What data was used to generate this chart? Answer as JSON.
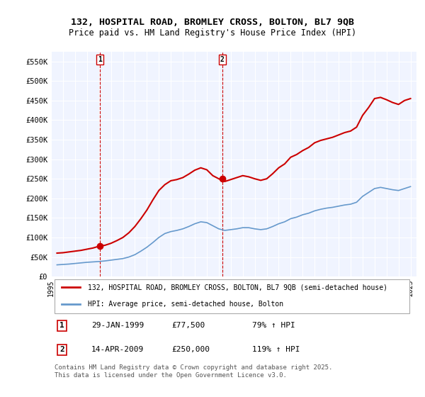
{
  "title_line1": "132, HOSPITAL ROAD, BROMLEY CROSS, BOLTON, BL7 9QB",
  "title_line2": "Price paid vs. HM Land Registry's House Price Index (HPI)",
  "ylabel": "",
  "xlabel": "",
  "background_color": "#ffffff",
  "plot_bg_color": "#f0f4ff",
  "grid_color": "#ffffff",
  "red_color": "#cc0000",
  "blue_color": "#6699cc",
  "marker_color": "#cc0000",
  "vline_color": "#cc0000",
  "ylim": [
    0,
    575000
  ],
  "yticks": [
    0,
    50000,
    100000,
    150000,
    200000,
    250000,
    300000,
    350000,
    400000,
    450000,
    500000,
    550000
  ],
  "ytick_labels": [
    "£0",
    "£50K",
    "£100K",
    "£150K",
    "£200K",
    "£250K",
    "£300K",
    "£350K",
    "£400K",
    "£450K",
    "£500K",
    "£550K"
  ],
  "sale1_date": 1999.08,
  "sale1_price": 77500,
  "sale1_label": "1",
  "sale2_date": 2009.29,
  "sale2_price": 250000,
  "sale2_label": "2",
  "legend_line1": "132, HOSPITAL ROAD, BROMLEY CROSS, BOLTON, BL7 9QB (semi-detached house)",
  "legend_line2": "HPI: Average price, semi-detached house, Bolton",
  "annotation1_date": "29-JAN-1999",
  "annotation1_price": "£77,500",
  "annotation1_hpi": "79% ↑ HPI",
  "annotation2_date": "14-APR-2009",
  "annotation2_price": "£250,000",
  "annotation2_hpi": "119% ↑ HPI",
  "footnote": "Contains HM Land Registry data © Crown copyright and database right 2025.\nThis data is licensed under the Open Government Licence v3.0.",
  "hpi_data": {
    "years": [
      1995.5,
      1996.0,
      1996.5,
      1997.0,
      1997.5,
      1998.0,
      1998.5,
      1999.0,
      1999.5,
      2000.0,
      2000.5,
      2001.0,
      2001.5,
      2002.0,
      2002.5,
      2003.0,
      2003.5,
      2004.0,
      2004.5,
      2005.0,
      2005.5,
      2006.0,
      2006.5,
      2007.0,
      2007.5,
      2008.0,
      2008.5,
      2009.0,
      2009.5,
      2010.0,
      2010.5,
      2011.0,
      2011.5,
      2012.0,
      2012.5,
      2013.0,
      2013.5,
      2014.0,
      2014.5,
      2015.0,
      2015.5,
      2016.0,
      2016.5,
      2017.0,
      2017.5,
      2018.0,
      2018.5,
      2019.0,
      2019.5,
      2020.0,
      2020.5,
      2021.0,
      2021.5,
      2022.0,
      2022.5,
      2023.0,
      2023.5,
      2024.0,
      2024.5,
      2025.0
    ],
    "values": [
      30000,
      31000,
      32000,
      33500,
      35000,
      36500,
      37500,
      38500,
      40000,
      42000,
      44000,
      46000,
      50000,
      56000,
      65000,
      75000,
      87000,
      100000,
      110000,
      115000,
      118000,
      122000,
      128000,
      135000,
      140000,
      138000,
      130000,
      122000,
      118000,
      120000,
      122000,
      125000,
      125000,
      122000,
      120000,
      122000,
      128000,
      135000,
      140000,
      148000,
      152000,
      158000,
      162000,
      168000,
      172000,
      175000,
      177000,
      180000,
      183000,
      185000,
      190000,
      205000,
      215000,
      225000,
      228000,
      225000,
      222000,
      220000,
      225000,
      230000
    ]
  },
  "price_data": {
    "years": [
      1995.5,
      1996.0,
      1996.5,
      1997.0,
      1997.5,
      1998.0,
      1998.5,
      1999.0,
      1999.5,
      2000.0,
      2000.5,
      2001.0,
      2001.5,
      2002.0,
      2002.5,
      2003.0,
      2003.5,
      2004.0,
      2004.5,
      2005.0,
      2005.5,
      2006.0,
      2006.5,
      2007.0,
      2007.5,
      2008.0,
      2008.5,
      2009.0,
      2009.5,
      2010.0,
      2010.5,
      2011.0,
      2011.5,
      2012.0,
      2012.5,
      2013.0,
      2013.5,
      2014.0,
      2014.5,
      2015.0,
      2015.5,
      2016.0,
      2016.5,
      2017.0,
      2017.5,
      2018.0,
      2018.5,
      2019.0,
      2019.5,
      2020.0,
      2020.5,
      2021.0,
      2021.5,
      2022.0,
      2022.5,
      2023.0,
      2023.5,
      2024.0,
      2024.5,
      2025.0
    ],
    "values": [
      60000,
      61000,
      63000,
      65000,
      67000,
      70000,
      73000,
      77500,
      80000,
      85000,
      92000,
      100000,
      112000,
      128000,
      148000,
      170000,
      196000,
      220000,
      235000,
      245000,
      248000,
      253000,
      262000,
      272000,
      278000,
      273000,
      258000,
      250000,
      243000,
      248000,
      253000,
      258000,
      255000,
      250000,
      246000,
      250000,
      263000,
      278000,
      288000,
      305000,
      312000,
      322000,
      330000,
      342000,
      348000,
      352000,
      356000,
      362000,
      368000,
      372000,
      382000,
      412000,
      432000,
      455000,
      458000,
      452000,
      445000,
      440000,
      450000,
      455000
    ]
  },
  "xtick_years": [
    1995,
    1996,
    1997,
    1998,
    1999,
    2000,
    2001,
    2002,
    2003,
    2004,
    2005,
    2006,
    2007,
    2008,
    2009,
    2010,
    2011,
    2012,
    2013,
    2014,
    2015,
    2016,
    2017,
    2018,
    2019,
    2020,
    2021,
    2022,
    2023,
    2024,
    2025
  ]
}
